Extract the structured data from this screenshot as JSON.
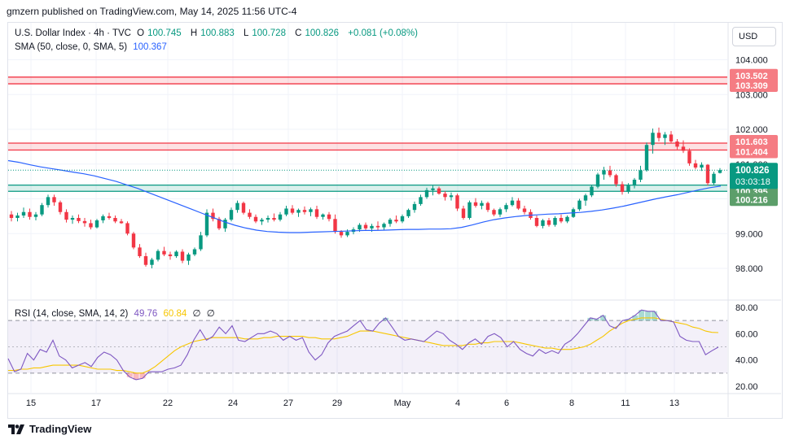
{
  "publisher": "gmzern published on TradingView.com, May 14, 2025 11:56 UTC-4",
  "legend": {
    "symbol": "U.S. Dollar Index · 4h · TVC",
    "o_label": "O",
    "o_value": "100.745",
    "h_label": "H",
    "h_value": "100.883",
    "l_label": "L",
    "l_value": "100.728",
    "c_label": "C",
    "c_value": "100.826",
    "change": "+0.081 (+0.08%)",
    "sma_label": "SMA (50, close, 0, SMA, 5)",
    "sma_value": "100.367",
    "rsi_label": "RSI (14, close, SMA, 14, 2)",
    "rsi_value": "49.76",
    "rsi_ma_value": "60.84",
    "rsi_extra1": "∅",
    "rsi_extra2": "∅"
  },
  "currency_button": "USD",
  "footer_brand": "TradingView",
  "colors": {
    "up": "#089981",
    "down": "#f23645",
    "sma": "#2962ff",
    "rsi": "#7e57c2",
    "rsi_ma": "#f7c600",
    "resistance": "#f23645",
    "support": "#089981"
  },
  "chart_data": [
    {
      "type": "candlestick",
      "title": "U.S. Dollar Index · 4h · TVC",
      "x_tick_labels": [
        "15",
        "17",
        "22",
        "24",
        "27",
        "29",
        "May",
        "4",
        "6",
        "8",
        "11",
        "13"
      ],
      "y_tick_labels": [
        "98.000",
        "99.000",
        "100.000",
        "101.000",
        "102.000",
        "103.000",
        "104.000"
      ],
      "ylim": [
        96.95,
        104.5
      ],
      "last_price": "100.826",
      "countdown": "03:03:18",
      "zones": [
        {
          "top": 103.502,
          "bottom": 103.309,
          "kind": "resistance",
          "top_label": "103.502",
          "bottom_label": "103.309"
        },
        {
          "top": 101.603,
          "bottom": 101.404,
          "kind": "resistance",
          "top_label": "101.603",
          "bottom_label": "101.404"
        },
        {
          "top": 100.395,
          "bottom": 100.216,
          "kind": "support",
          "top_label": "100.395",
          "bottom_label": "100.216"
        }
      ],
      "ohlc": [
        [
          99.55,
          99.65,
          99.35,
          99.45
        ],
        [
          99.45,
          99.6,
          99.35,
          99.52
        ],
        [
          99.52,
          99.75,
          99.45,
          99.62
        ],
        [
          99.62,
          99.72,
          99.4,
          99.48
        ],
        [
          99.48,
          99.62,
          99.38,
          99.55
        ],
        [
          99.55,
          99.88,
          99.5,
          99.82
        ],
        [
          99.82,
          100.12,
          99.75,
          100.05
        ],
        [
          100.05,
          100.12,
          99.8,
          99.9
        ],
        [
          99.9,
          99.95,
          99.55,
          99.62
        ],
        [
          99.62,
          99.7,
          99.32,
          99.4
        ],
        [
          99.4,
          99.52,
          99.28,
          99.45
        ],
        [
          99.45,
          99.55,
          99.3,
          99.36
        ],
        [
          99.36,
          99.45,
          99.2,
          99.3
        ],
        [
          99.3,
          99.4,
          99.12,
          99.18
        ],
        [
          99.18,
          99.42,
          99.15,
          99.38
        ],
        [
          99.38,
          99.55,
          99.3,
          99.5
        ],
        [
          99.5,
          99.6,
          99.4,
          99.45
        ],
        [
          99.45,
          99.52,
          99.3,
          99.35
        ],
        [
          99.35,
          99.42,
          99.28,
          99.3
        ],
        [
          99.3,
          99.35,
          98.95,
          99.0
        ],
        [
          99.0,
          99.05,
          98.55,
          98.6
        ],
        [
          98.6,
          98.7,
          98.3,
          98.35
        ],
        [
          98.35,
          98.45,
          98.05,
          98.1
        ],
        [
          98.1,
          98.3,
          98.0,
          98.25
        ],
        [
          98.25,
          98.55,
          98.2,
          98.5
        ],
        [
          98.5,
          98.62,
          98.35,
          98.4
        ],
        [
          98.4,
          98.48,
          98.25,
          98.35
        ],
        [
          98.35,
          98.52,
          98.3,
          98.48
        ],
        [
          98.48,
          98.55,
          98.15,
          98.22
        ],
        [
          98.22,
          98.45,
          98.1,
          98.4
        ],
        [
          98.4,
          98.6,
          98.35,
          98.55
        ],
        [
          98.55,
          99.05,
          98.5,
          98.95
        ],
        [
          98.95,
          99.7,
          98.9,
          99.6
        ],
        [
          99.6,
          99.72,
          99.35,
          99.42
        ],
        [
          99.42,
          99.48,
          99.1,
          99.15
        ],
        [
          99.15,
          99.45,
          99.05,
          99.4
        ],
        [
          99.4,
          99.75,
          99.35,
          99.68
        ],
        [
          99.68,
          99.95,
          99.6,
          99.88
        ],
        [
          99.88,
          99.92,
          99.55,
          99.6
        ],
        [
          99.6,
          99.7,
          99.42,
          99.48
        ],
        [
          99.48,
          99.55,
          99.3,
          99.35
        ],
        [
          99.35,
          99.45,
          99.25,
          99.4
        ],
        [
          99.4,
          99.52,
          99.32,
          99.45
        ],
        [
          99.45,
          99.58,
          99.35,
          99.4
        ],
        [
          99.4,
          99.62,
          99.35,
          99.55
        ],
        [
          99.55,
          99.8,
          99.5,
          99.72
        ],
        [
          99.72,
          99.82,
          99.55,
          99.6
        ],
        [
          99.6,
          99.72,
          99.48,
          99.68
        ],
        [
          99.68,
          99.78,
          99.55,
          99.62
        ],
        [
          99.62,
          99.75,
          99.5,
          99.7
        ],
        [
          99.7,
          99.8,
          99.42,
          99.48
        ],
        [
          99.48,
          99.58,
          99.4,
          99.55
        ],
        [
          99.55,
          99.62,
          99.35,
          99.42
        ],
        [
          99.42,
          99.55,
          99.0,
          99.05
        ],
        [
          99.05,
          99.1,
          98.88,
          98.95
        ],
        [
          98.95,
          99.12,
          98.9,
          99.05
        ],
        [
          99.05,
          99.18,
          98.98,
          99.12
        ],
        [
          99.12,
          99.3,
          99.05,
          99.25
        ],
        [
          99.25,
          99.32,
          99.08,
          99.15
        ],
        [
          99.15,
          99.28,
          99.05,
          99.22
        ],
        [
          99.22,
          99.35,
          99.1,
          99.18
        ],
        [
          99.18,
          99.32,
          99.1,
          99.28
        ],
        [
          99.28,
          99.45,
          99.2,
          99.4
        ],
        [
          99.4,
          99.52,
          99.3,
          99.35
        ],
        [
          99.35,
          99.55,
          99.3,
          99.5
        ],
        [
          99.5,
          99.72,
          99.45,
          99.68
        ],
        [
          99.68,
          99.92,
          99.6,
          99.85
        ],
        [
          99.85,
          100.12,
          99.8,
          100.05
        ],
        [
          100.05,
          100.32,
          100.0,
          100.25
        ],
        [
          100.25,
          100.38,
          100.1,
          100.3
        ],
        [
          100.3,
          100.35,
          100.12,
          100.15
        ],
        [
          100.15,
          100.22,
          99.95,
          100.05
        ],
        [
          100.05,
          100.18,
          99.95,
          100.1
        ],
        [
          100.1,
          100.15,
          99.65,
          99.72
        ],
        [
          99.72,
          99.8,
          99.4,
          99.45
        ],
        [
          99.45,
          99.95,
          99.4,
          99.9
        ],
        [
          99.9,
          100.02,
          99.75,
          99.8
        ],
        [
          99.8,
          99.95,
          99.7,
          99.88
        ],
        [
          99.88,
          99.92,
          99.62,
          99.68
        ],
        [
          99.68,
          99.72,
          99.5,
          99.55
        ],
        [
          99.55,
          99.75,
          99.48,
          99.7
        ],
        [
          99.7,
          99.88,
          99.62,
          99.82
        ],
        [
          99.82,
          100.05,
          99.78,
          99.95
        ],
        [
          99.95,
          100.02,
          99.68,
          99.72
        ],
        [
          99.72,
          99.8,
          99.55,
          99.62
        ],
        [
          99.62,
          99.7,
          99.4,
          99.45
        ],
        [
          99.45,
          99.52,
          99.18,
          99.22
        ],
        [
          99.22,
          99.42,
          99.15,
          99.38
        ],
        [
          99.38,
          99.45,
          99.2,
          99.25
        ],
        [
          99.25,
          99.5,
          99.2,
          99.45
        ],
        [
          99.45,
          99.55,
          99.3,
          99.35
        ],
        [
          99.35,
          99.52,
          99.3,
          99.48
        ],
        [
          99.48,
          99.75,
          99.45,
          99.7
        ],
        [
          99.7,
          100.0,
          99.65,
          99.95
        ],
        [
          99.95,
          100.15,
          99.8,
          100.1
        ],
        [
          100.1,
          100.4,
          100.05,
          100.35
        ],
        [
          100.35,
          100.75,
          100.3,
          100.7
        ],
        [
          100.7,
          100.92,
          100.55,
          100.82
        ],
        [
          100.82,
          100.95,
          100.62,
          100.68
        ],
        [
          100.68,
          100.72,
          100.35,
          100.42
        ],
        [
          100.42,
          100.5,
          100.12,
          100.2
        ],
        [
          100.2,
          100.45,
          100.15,
          100.38
        ],
        [
          100.38,
          100.6,
          100.3,
          100.55
        ],
        [
          100.55,
          100.95,
          100.48,
          100.82
        ],
        [
          100.82,
          101.62,
          100.78,
          101.55
        ],
        [
          101.55,
          102.02,
          101.3,
          101.9
        ],
        [
          101.9,
          102.05,
          101.65,
          101.75
        ],
        [
          101.75,
          101.92,
          101.55,
          101.85
        ],
        [
          101.85,
          101.95,
          101.6,
          101.65
        ],
        [
          101.65,
          101.72,
          101.42,
          101.5
        ],
        [
          101.5,
          101.68,
          101.32,
          101.38
        ],
        [
          101.38,
          101.45,
          100.95,
          101.02
        ],
        [
          101.02,
          101.12,
          100.85,
          100.9
        ],
        [
          100.9,
          101.05,
          100.8,
          100.98
        ],
        [
          100.98,
          101.0,
          100.38,
          100.45
        ],
        [
          100.45,
          100.78,
          100.4,
          100.72
        ],
        [
          100.745,
          100.883,
          100.728,
          100.826
        ]
      ],
      "sma": [
        101.1,
        101.05,
        100.98,
        100.92,
        100.87,
        100.82,
        100.77,
        100.72,
        100.66,
        100.58,
        100.5,
        100.4,
        100.3,
        100.18,
        100.06,
        99.94,
        99.82,
        99.7,
        99.58,
        99.46,
        99.34,
        99.24,
        99.16,
        99.1,
        99.06,
        99.04,
        99.03,
        99.03,
        99.04,
        99.05,
        99.06,
        99.07,
        99.08,
        99.09,
        99.09,
        99.1,
        99.11,
        99.12,
        99.12,
        99.13,
        99.13,
        99.14,
        99.18,
        99.25,
        99.33,
        99.4,
        99.45,
        99.49,
        99.52,
        99.54,
        99.56,
        99.57,
        99.59,
        99.61,
        99.64,
        99.68,
        99.73,
        99.79,
        99.86,
        99.93,
        100.0,
        100.06,
        100.12,
        100.19,
        100.26,
        100.32,
        100.367
      ]
    },
    {
      "type": "line",
      "title": "RSI (14, close, SMA, 14, 2)",
      "y_tick_labels": [
        "20.00",
        "40.00",
        "60.00",
        "80.00"
      ],
      "ylim": [
        15,
        85
      ],
      "bands": [
        30,
        50,
        70
      ],
      "rsi": [
        41,
        31,
        33,
        45,
        40,
        48,
        46,
        55,
        43,
        40,
        34,
        36,
        38,
        35,
        42,
        46,
        44,
        40,
        32,
        27,
        25,
        26,
        31,
        31,
        31,
        33,
        34,
        36,
        44,
        55,
        63,
        55,
        58,
        65,
        60,
        66,
        55,
        54,
        57,
        60,
        60,
        62,
        60,
        55,
        58,
        55,
        57,
        46,
        40,
        44,
        53,
        58,
        60,
        62,
        66,
        70,
        63,
        62,
        68,
        72,
        65,
        58,
        55,
        56,
        55,
        54,
        58,
        62,
        60,
        55,
        52,
        48,
        53,
        56,
        52,
        58,
        60,
        57,
        50,
        54,
        48,
        45,
        43,
        48,
        45,
        47,
        45,
        52,
        55,
        60,
        66,
        72,
        71,
        74,
        66,
        64,
        70,
        71,
        74,
        78,
        77,
        77,
        70,
        70,
        69,
        58,
        55,
        54,
        54,
        44,
        47,
        49.76
      ],
      "rsi_ma": [
        32,
        32,
        33,
        33,
        34,
        34,
        35,
        36,
        36,
        36,
        36,
        36,
        35,
        34,
        33,
        33,
        33,
        32,
        32,
        31,
        30,
        30,
        32,
        35,
        39,
        43,
        47,
        50,
        52,
        54,
        55,
        56,
        57,
        57,
        57,
        57,
        57,
        56,
        56,
        56,
        57,
        57,
        58,
        58,
        58,
        58,
        58,
        57,
        57,
        56,
        56,
        56,
        57,
        58,
        60,
        62,
        62,
        62,
        61,
        60,
        59,
        58,
        57,
        56,
        55,
        54,
        53,
        52,
        51,
        51,
        51,
        51,
        52,
        52,
        53,
        53,
        54,
        54,
        54,
        54,
        53,
        52,
        51,
        50,
        49,
        49,
        48,
        48,
        48,
        49,
        50,
        52,
        55,
        58,
        62,
        65,
        68,
        70,
        71,
        72,
        72,
        72,
        71,
        70,
        69,
        68,
        67,
        65,
        64,
        62,
        61,
        60.84
      ],
      "rsi_color_name": "RSI line",
      "rsi_ma_color_name": "RSI SMA line"
    }
  ]
}
